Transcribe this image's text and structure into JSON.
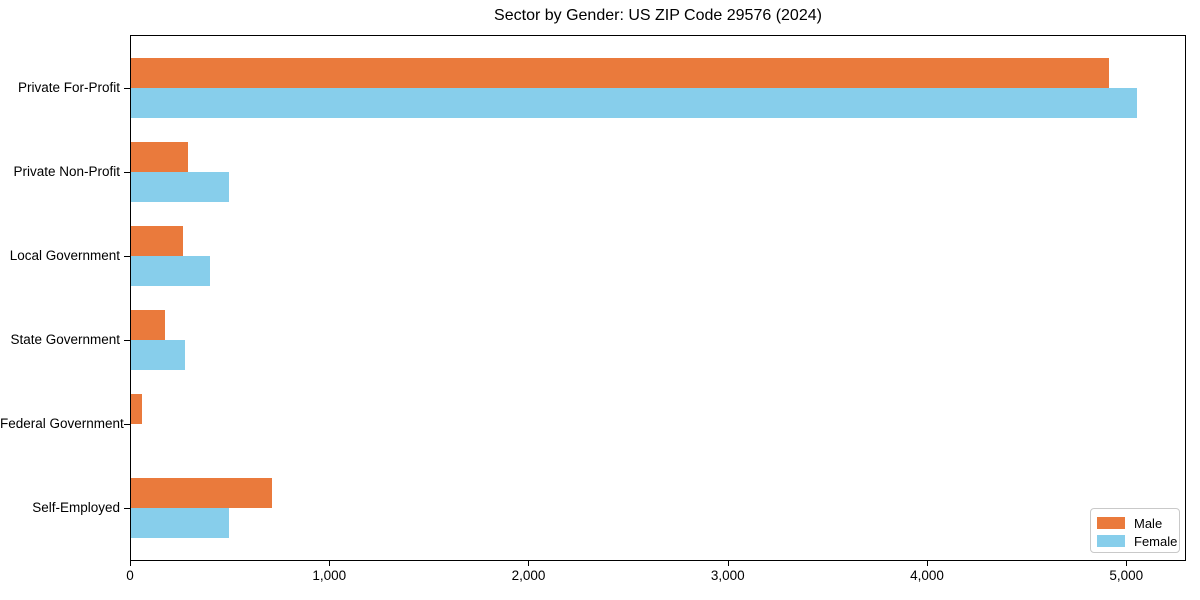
{
  "chart_data": {
    "type": "bar",
    "orientation": "horizontal",
    "title": "Sector by Gender: US ZIP Code 29576 (2024)",
    "categories": [
      "Private For-Profit",
      "Private Non-Profit",
      "Local Government",
      "State Government",
      "Federal Government",
      "Self-Employed"
    ],
    "series": [
      {
        "name": "Male",
        "color": "#EA7A3C",
        "values": [
          4910,
          285,
          260,
          170,
          55,
          710
        ]
      },
      {
        "name": "Female",
        "color": "#87CEEB",
        "values": [
          5050,
          490,
          395,
          270,
          0,
          490
        ]
      }
    ],
    "xlabel": "",
    "ylabel": "",
    "xlim": [
      0,
      5300
    ],
    "x_ticks": [
      0,
      1000,
      2000,
      3000,
      4000,
      5000
    ],
    "x_tick_labels": [
      "0",
      "1,000",
      "2,000",
      "3,000",
      "4,000",
      "5,000"
    ],
    "grid": false,
    "legend_position": "lower right"
  }
}
